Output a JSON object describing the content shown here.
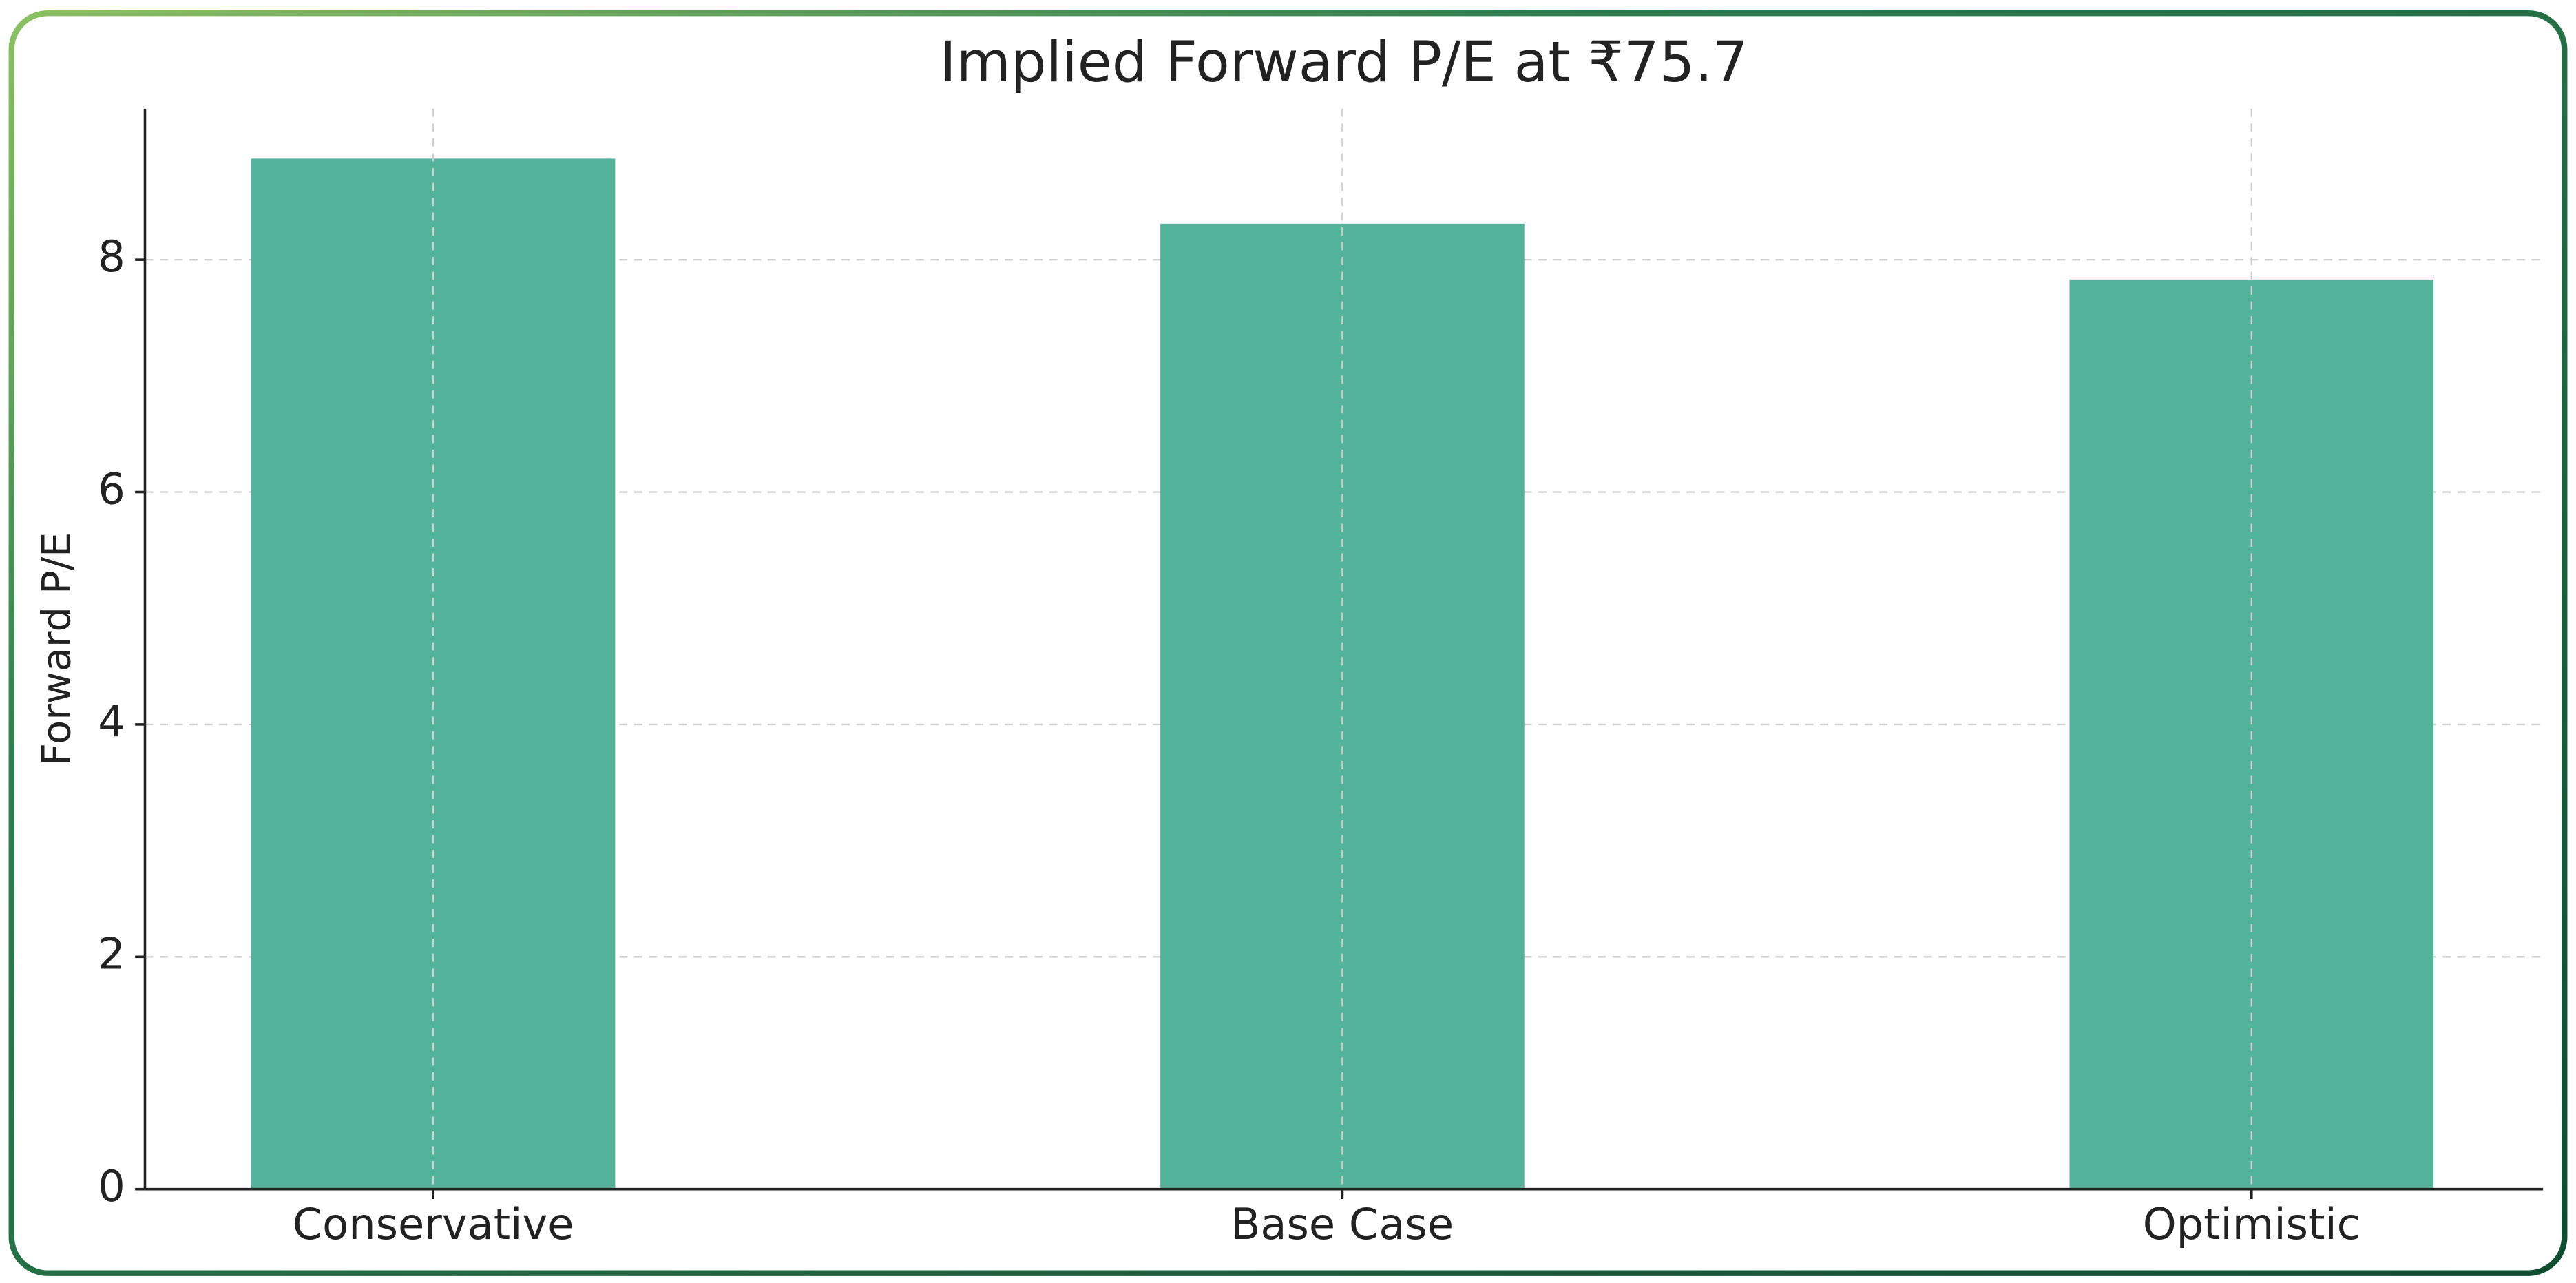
{
  "chart_data": {
    "type": "bar",
    "title": "Implied Forward P/E at ₹75.7",
    "y_label": "Forward P/E",
    "categories": [
      "Conservative",
      "Base Case",
      "Optimistic"
    ],
    "values": [
      8.87,
      8.31,
      7.83
    ],
    "color": "#52b29a",
    "ylim": [
      0,
      9.3
    ],
    "yticks": [
      0,
      2,
      4,
      6,
      8
    ],
    "grid": true
  }
}
